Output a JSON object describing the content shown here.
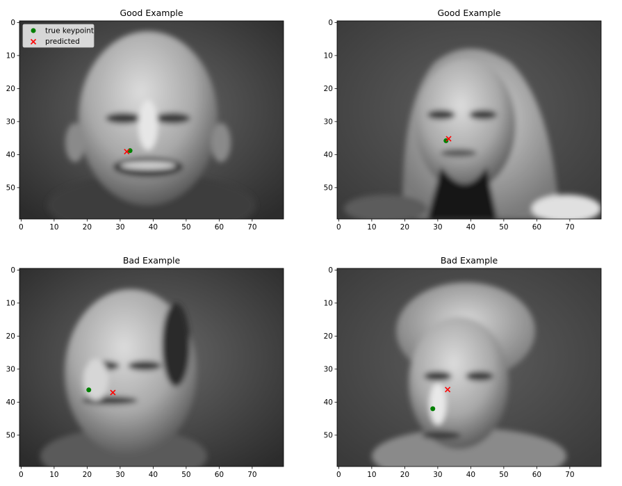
{
  "chart_data": [
    {
      "type": "scatter",
      "title": "Good Example",
      "image": "grayscale face photo (bald man, smiling)",
      "xlim": [
        0,
        80
      ],
      "ylim": [
        60,
        0
      ],
      "xticks": [
        0,
        10,
        20,
        30,
        40,
        50,
        60,
        70
      ],
      "yticks": [
        0,
        10,
        20,
        30,
        40,
        50
      ],
      "series": [
        {
          "name": "true keypoint",
          "marker": "circle",
          "color": "#008000",
          "x": [
            33.5
          ],
          "y": [
            39.3
          ]
        },
        {
          "name": "predicted",
          "marker": "x",
          "color": "#ff0000",
          "x": [
            32.5
          ],
          "y": [
            39.6
          ]
        }
      ],
      "legend": true,
      "legend_loc": "upper left"
    },
    {
      "type": "scatter",
      "title": "Good Example",
      "image": "grayscale face photo (woman with long hair)",
      "xlim": [
        0,
        80
      ],
      "ylim": [
        60,
        0
      ],
      "xticks": [
        0,
        10,
        20,
        30,
        40,
        50,
        60,
        70
      ],
      "yticks": [
        0,
        10,
        20,
        30,
        40,
        50
      ],
      "series": [
        {
          "name": "true keypoint",
          "marker": "circle",
          "color": "#008000",
          "x": [
            33.0
          ],
          "y": [
            36.3
          ]
        },
        {
          "name": "predicted",
          "marker": "x",
          "color": "#ff0000",
          "x": [
            33.8
          ],
          "y": [
            35.7
          ]
        }
      ],
      "legend": false
    },
    {
      "type": "scatter",
      "title": "Bad Example",
      "image": "grayscale face photo (balding man, head turned)",
      "xlim": [
        0,
        80
      ],
      "ylim": [
        60,
        0
      ],
      "xticks": [
        0,
        10,
        20,
        30,
        40,
        50,
        60,
        70
      ],
      "yticks": [
        0,
        10,
        20,
        30,
        40,
        50
      ],
      "series": [
        {
          "name": "true keypoint",
          "marker": "circle",
          "color": "#008000",
          "x": [
            21.0
          ],
          "y": [
            36.8
          ]
        },
        {
          "name": "predicted",
          "marker": "x",
          "color": "#ff0000",
          "x": [
            28.3
          ],
          "y": [
            37.6
          ]
        }
      ],
      "legend": false
    },
    {
      "type": "scatter",
      "title": "Bad Example",
      "image": "grayscale face photo (person with short messy hair)",
      "xlim": [
        0,
        80
      ],
      "ylim": [
        60,
        0
      ],
      "xticks": [
        0,
        10,
        20,
        30,
        40,
        50,
        60,
        70
      ],
      "yticks": [
        0,
        10,
        20,
        30,
        40,
        50
      ],
      "series": [
        {
          "name": "true keypoint",
          "marker": "circle",
          "color": "#008000",
          "x": [
            29.0
          ],
          "y": [
            42.5
          ]
        },
        {
          "name": "predicted",
          "marker": "x",
          "color": "#ff0000",
          "x": [
            33.5
          ],
          "y": [
            36.7
          ]
        }
      ],
      "legend": false
    }
  ],
  "legend": {
    "true_label": "true keypoint",
    "pred_label": "predicted"
  }
}
